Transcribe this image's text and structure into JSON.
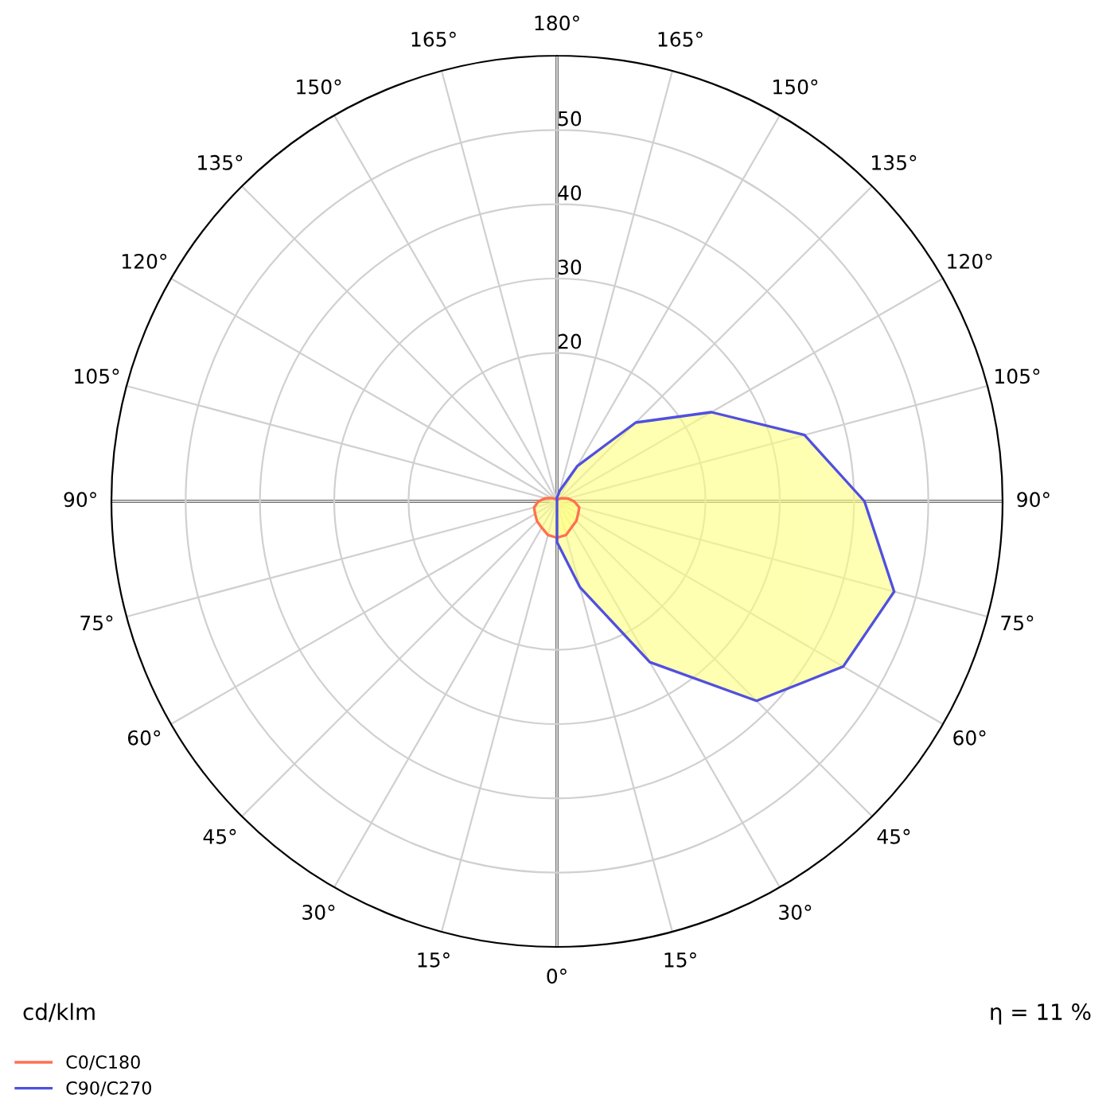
{
  "chart_data": {
    "type": "radar",
    "categories": [
      "180°",
      "165°",
      "150°",
      "135°",
      "120°",
      "105°",
      "90°",
      "75°",
      "60°",
      "45°",
      "30°",
      "15°",
      "0°",
      "15°",
      "30°",
      "45°",
      "60°",
      "75°",
      "90°",
      "105°",
      "120°",
      "135°",
      "150°",
      "165°"
    ],
    "series": [
      {
        "name": "C0/C180",
        "color": "#ff7050",
        "values": [
          0.2,
          0.2,
          0.3,
          0.5,
          0.8,
          1.5,
          2.3,
          3.1,
          3.3,
          3.7,
          4.0,
          4.7,
          4.9,
          4.7,
          4.1,
          3.8,
          3.4,
          3.2,
          2.5,
          1.6,
          0.9,
          0.5,
          0.3,
          0.2
        ]
      },
      {
        "name": "C90/C270",
        "color": "#5050e0",
        "values": [
          0.5,
          1.5,
          5.5,
          15,
          24,
          34.5,
          41.4,
          47,
          44.5,
          38,
          25,
          12,
          5.5,
          0,
          0,
          0,
          0,
          0,
          0,
          0,
          0,
          0,
          0,
          0
        ]
      }
    ],
    "ylim": [
      0,
      60
    ],
    "yticks": [
      20,
      30,
      40,
      50
    ],
    "grid": true,
    "legend": "bottom left",
    "annotations": [
      "cd/klm",
      "η = 11 %"
    ]
  }
}
